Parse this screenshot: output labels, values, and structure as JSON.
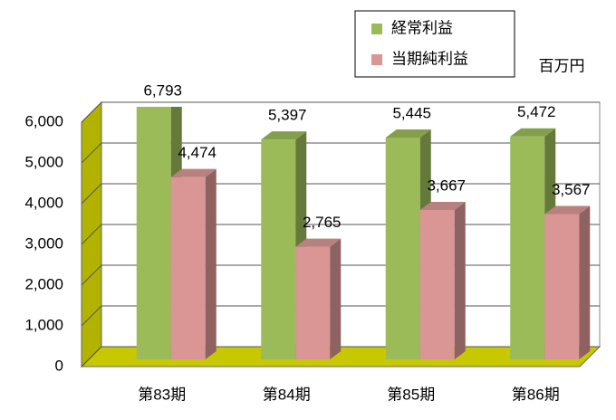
{
  "chart_data": {
    "type": "bar3d",
    "unit_label": "百万円",
    "categories": [
      "第83期",
      "第84期",
      "第85期",
      "第86期"
    ],
    "series": [
      {
        "name": "経常利益",
        "color": "#9bbb59",
        "values": [
          6793,
          5397,
          5445,
          5472
        ],
        "value_labels": [
          "6,793",
          "5,397",
          "5,445",
          "5,472"
        ]
      },
      {
        "name": "当期純利益",
        "color": "#d99694",
        "values": [
          4474,
          2765,
          3667,
          3567
        ],
        "value_labels": [
          "4,474",
          "2,765",
          "3,667",
          "3,567"
        ]
      }
    ],
    "ylim": [
      0,
      6000
    ],
    "yticks": [
      0,
      {
        "value": 1000,
        "label": "1,000"
      },
      {
        "value": 2000,
        "label": "2,000"
      },
      {
        "value": 3000,
        "label": "3,000"
      },
      {
        "value": 4000,
        "label": "4,000"
      },
      {
        "value": 5000,
        "label": "5,000"
      },
      {
        "value": 6000,
        "label": "6,000"
      }
    ],
    "grid": true,
    "wall_color": "#b2b200",
    "floor_color": "#c8c800"
  }
}
